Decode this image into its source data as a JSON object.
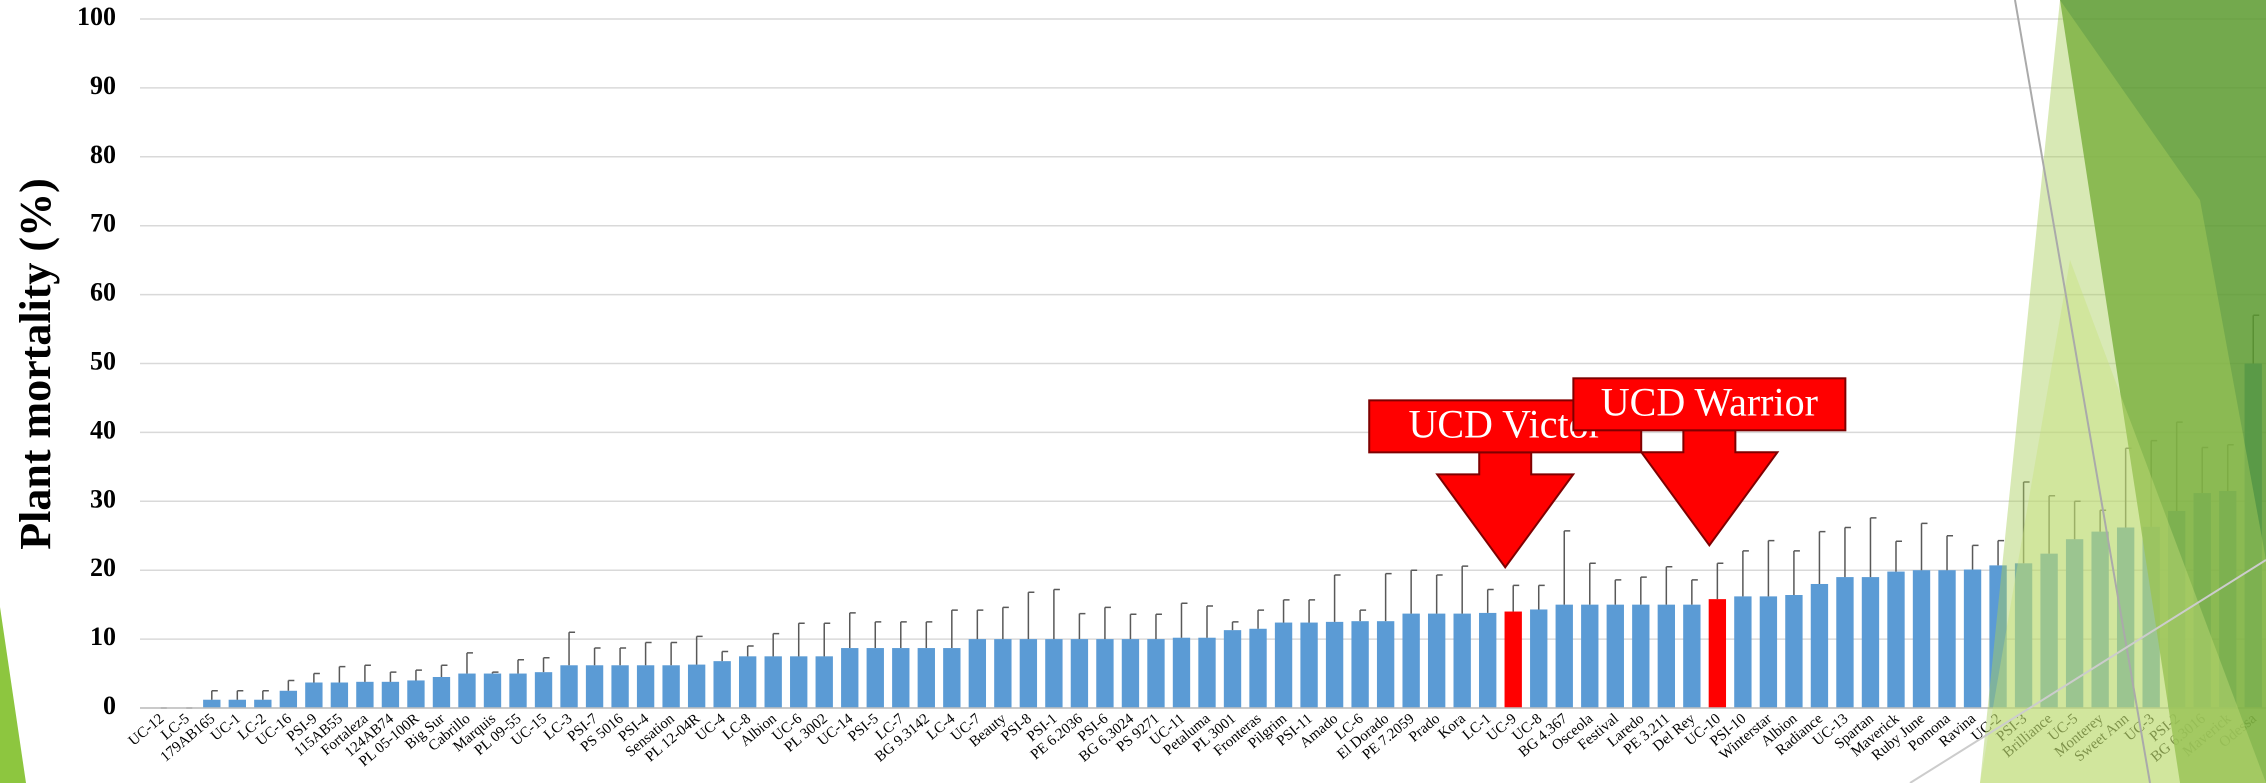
{
  "chart_data": {
    "type": "bar",
    "y_label": "Plant mortality (%)",
    "categories": [
      "UC-12",
      "LC-5",
      "179AB165",
      "UC-1",
      "LC-2",
      "UC-16",
      "PSI-9",
      "115AB55",
      "Fortaleza",
      "124AB74",
      "PL 05-100R",
      "Big Sur",
      "Cabrillo",
      "Marquis",
      "PL 09-55",
      "UC-15",
      "LC-3",
      "PSI-7",
      "PS 5016",
      "PSI-4",
      "Sensation",
      "PL 12-04R",
      "UC-4",
      "LC-8",
      "Albion",
      "UC-6",
      "PL 3002",
      "UC-14",
      "PSI-5",
      "LC-7",
      "BG 9.3142",
      "LC-4",
      "UC-7",
      "Beauty",
      "PSI-8",
      "PSI-1",
      "PE 6.2036",
      "PSI-6",
      "BG 6.3024",
      "PS 9271",
      "UC-11",
      "Petaluma",
      "PL 3001",
      "Fronteras",
      "Pilgrim",
      "PSI-11",
      "Amado",
      "LC-6",
      "El Dorado",
      "PE 7.2059",
      "Prado",
      "Kora",
      "LC-1",
      "UC-9",
      "UC-8",
      "BG 4.367",
      "Osceola",
      "Festival",
      "Laredo",
      "PE 3.211",
      "Del Rey",
      "UC-10",
      "PSI-10",
      "Winterstar",
      "Albion",
      "Radiance",
      "UC-13",
      "Spartan",
      "Maverick",
      "Ruby June",
      "Pomona",
      "Ravina",
      "UC-2",
      "PSI-3",
      "Brilliance",
      "UC-5",
      "Monterey",
      "Sweet Ann",
      "UC-3",
      "PSI-2",
      "BG 6.3016",
      "Maverick",
      "Odessa"
    ],
    "series": [
      {
        "color": "#5b9bd5",
        "values": [
          0,
          0,
          1.2,
          1.2,
          1.2,
          2.5,
          3.7,
          3.7,
          3.8,
          3.8,
          4,
          4.5,
          5,
          5,
          5,
          5.2,
          6.2,
          6.2,
          6.2,
          6.2,
          6.2,
          6.3,
          6.8,
          7.5,
          7.5,
          7.5,
          7.5,
          8.7,
          8.7,
          8.7,
          8.7,
          8.7,
          10,
          10,
          10,
          10,
          10,
          10,
          10,
          10,
          10.2,
          10.2,
          11.3,
          11.5,
          12.4,
          12.4,
          12.5,
          12.6,
          12.6,
          13.7,
          13.7,
          13.7,
          13.8,
          14,
          14.3,
          15,
          15,
          15,
          15,
          15,
          15,
          15.8,
          16.2,
          16.2,
          16.4,
          18,
          19,
          19,
          19.8,
          20,
          20,
          20.1,
          20.7,
          21,
          22.4,
          24.5,
          25.6,
          26.2,
          26.3,
          28.6,
          31.2,
          31.5,
          50
        ],
        "errors": [
          0,
          0,
          1.3,
          1.3,
          1.3,
          1.5,
          1.3,
          2.3,
          2.4,
          1.4,
          1.5,
          1.7,
          3,
          0.2,
          2,
          2.1,
          4.8,
          2.5,
          2.5,
          3.3,
          3.3,
          4.1,
          1.4,
          1.5,
          3.3,
          4.8,
          4.8,
          5.1,
          3.8,
          3.8,
          3.8,
          5.5,
          4.2,
          4.6,
          6.8,
          7.2,
          3.7,
          4.6,
          3.6,
          3.6,
          5,
          4.6,
          1.2,
          2.7,
          3.3,
          3.3,
          6.8,
          1.6,
          6.9,
          6.3,
          5.6,
          6.9,
          3.4,
          3.8,
          3.5,
          10.7,
          6,
          3.6,
          4,
          5.5,
          3.6,
          5.2,
          6.6,
          8.1,
          6.4,
          7.6,
          7.2,
          8.6,
          4.4,
          6.8,
          5,
          3.5,
          3.6,
          11.8,
          8.4,
          5.5,
          3.1,
          11.5,
          12.5,
          12.9,
          6.6,
          6.7,
          7
        ]
      }
    ],
    "ylim": [
      0,
      100
    ],
    "yticks": [
      0,
      10,
      20,
      30,
      40,
      50,
      60,
      70,
      80,
      90,
      100
    ],
    "grid": true,
    "annotations": [
      {
        "text": "UCD Victor",
        "index": 53,
        "color": "#ff0000"
      },
      {
        "text": "UCD Warrior",
        "index": 61,
        "color": "#ff0000"
      }
    ]
  }
}
